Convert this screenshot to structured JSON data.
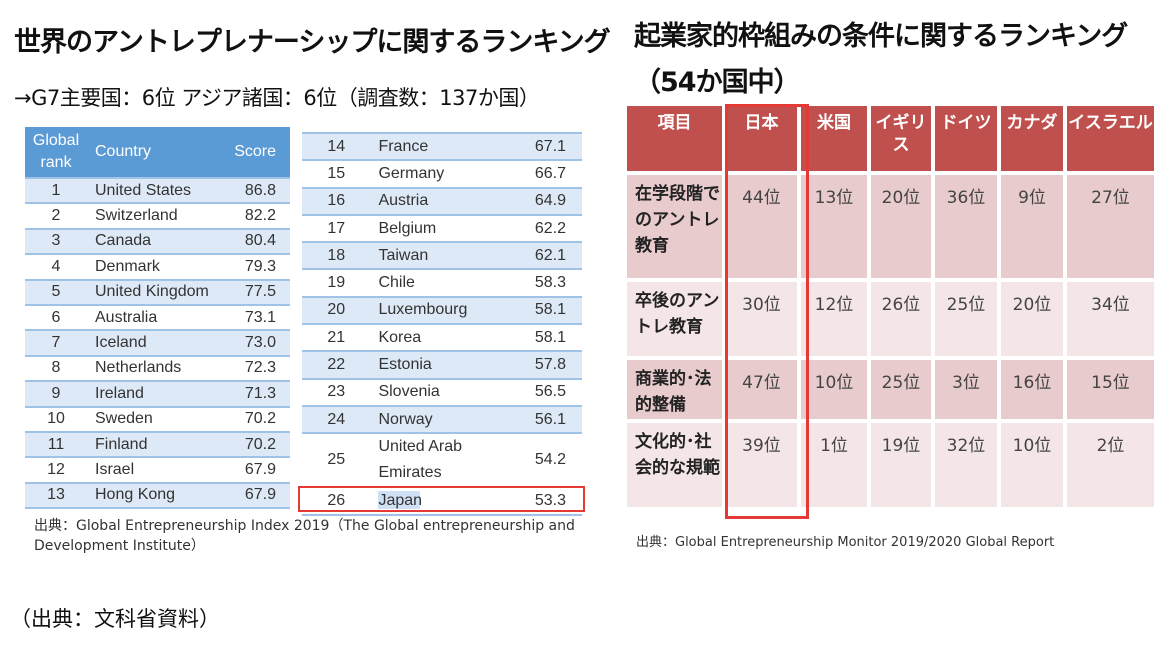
{
  "left": {
    "title": "世界のアントレプレナーシップに関するランキング",
    "subtitle": "→G7主要国：6位  アジア諸国：6位（調査数：137か国）",
    "headers": {
      "rank": "Global rank",
      "country": "Country",
      "score": "Score"
    },
    "rows_a": [
      {
        "rank": "1",
        "country": "United States",
        "score": "86.8"
      },
      {
        "rank": "2",
        "country": "Switzerland",
        "score": "82.2"
      },
      {
        "rank": "3",
        "country": "Canada",
        "score": "80.4"
      },
      {
        "rank": "4",
        "country": "Denmark",
        "score": "79.3"
      },
      {
        "rank": "5",
        "country": "United Kingdom",
        "score": "77.5"
      },
      {
        "rank": "6",
        "country": "Australia",
        "score": "73.1"
      },
      {
        "rank": "7",
        "country": "Iceland",
        "score": "73.0"
      },
      {
        "rank": "8",
        "country": "Netherlands",
        "score": "72.3"
      },
      {
        "rank": "9",
        "country": "Ireland",
        "score": "71.3"
      },
      {
        "rank": "10",
        "country": "Sweden",
        "score": "70.2"
      },
      {
        "rank": "11",
        "country": "Finland",
        "score": "70.2"
      },
      {
        "rank": "12",
        "country": "Israel",
        "score": "67.9"
      },
      {
        "rank": "13",
        "country": "Hong Kong",
        "score": "67.9"
      }
    ],
    "rows_b": [
      {
        "rank": "14",
        "country": "France",
        "score": "67.1"
      },
      {
        "rank": "15",
        "country": "Germany",
        "score": "66.7"
      },
      {
        "rank": "16",
        "country": "Austria",
        "score": "64.9"
      },
      {
        "rank": "17",
        "country": "Belgium",
        "score": "62.2"
      },
      {
        "rank": "18",
        "country": "Taiwan",
        "score": "62.1"
      },
      {
        "rank": "19",
        "country": "Chile",
        "score": "58.3"
      },
      {
        "rank": "20",
        "country": "Luxembourg",
        "score": "58.1"
      },
      {
        "rank": "21",
        "country": "Korea",
        "score": "58.1"
      },
      {
        "rank": "22",
        "country": "Estonia",
        "score": "57.8"
      },
      {
        "rank": "23",
        "country": "Slovenia",
        "score": "56.5"
      },
      {
        "rank": "24",
        "country": "Norway",
        "score": "56.1"
      },
      {
        "rank": "25",
        "country": "United Arab Emirates",
        "score": "54.2"
      },
      {
        "rank": "26",
        "country": "Japan",
        "score": "53.3",
        "highlight": true
      }
    ],
    "source": "出典：Global Entrepreneurship Index 2019（The Global entrepreneurship and Development Institute）"
  },
  "right": {
    "title_line1": "起業家的枠組みの条件に関するランキング",
    "title_line2": "（54か国中）",
    "headers": [
      "項目",
      "日本",
      "米国",
      "イギリス",
      "ドイツ",
      "カナダ",
      "イスラエル"
    ],
    "rows": [
      {
        "item": "在学段階でのアントレ教育",
        "values": [
          "44位",
          "13位",
          "20位",
          "36位",
          "9位",
          "27位"
        ]
      },
      {
        "item": "卒後のアントレ教育",
        "values": [
          "30位",
          "12位",
          "26位",
          "25位",
          "20位",
          "34位"
        ]
      },
      {
        "item": "商業的･法的整備",
        "values": [
          "47位",
          "10位",
          "25位",
          "3位",
          "16位",
          "15位"
        ]
      },
      {
        "item": "文化的･社会的な規範",
        "values": [
          "39位",
          "1位",
          "19位",
          "32位",
          "10位",
          "2位"
        ]
      }
    ],
    "source": "出典：Global Entrepreneurship Monitor 2019/2020 Global Report"
  },
  "footer": "（出典：文科省資料）",
  "colors": {
    "header_blue": "#5b9bd5",
    "row_blue": "#dde9f6",
    "header_red": "#c0504d",
    "highlight": "#e53935"
  }
}
